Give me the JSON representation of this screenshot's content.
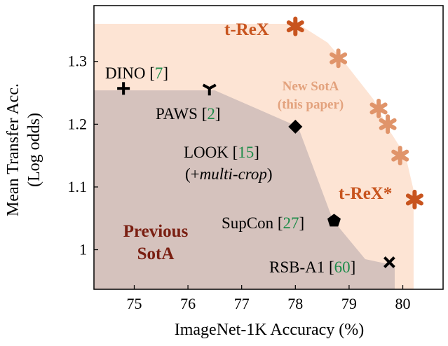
{
  "chart_data": {
    "type": "scatter",
    "title": "",
    "xlabel": "ImageNet-1K Accuracy (%)",
    "ylabel_line1": "Mean Transfer Acc.",
    "ylabel_line2": "(Log odds)",
    "xlim": [
      74.25,
      80.75
    ],
    "ylim": [
      0.937,
      1.389
    ],
    "xticks": [
      75,
      76,
      77,
      78,
      79,
      80
    ],
    "yticks": [
      1,
      1.1,
      1.2,
      1.3
    ],
    "xtick_labels": [
      "75",
      "76",
      "77",
      "78",
      "79",
      "80"
    ],
    "ytick_labels": [
      "1",
      "1.1",
      "1.2",
      "1.3"
    ],
    "colors": {
      "previous_region": "#d5c2bd",
      "new_region": "#fde4d4",
      "trex": "#c8541e",
      "trex_light": "#e0946a",
      "previous_label": "#7a1f12",
      "new_label": "#e3a27d",
      "cite": "#1e8c4a",
      "marker": "#000000"
    },
    "regions": {
      "previous": {
        "label_line1": "Previous",
        "label_line2": "SotA",
        "points": [
          [
            74.25,
            0.937
          ],
          [
            74.25,
            1.254
          ],
          [
            76.5,
            1.254
          ],
          [
            78.05,
            1.196
          ],
          [
            78.7,
            1.047
          ],
          [
            79.3,
            0.985
          ],
          [
            79.85,
            0.975
          ],
          [
            79.85,
            0.937
          ]
        ]
      },
      "new": {
        "label_line1": "New SotA",
        "label_line2": "(this paper)",
        "points": [
          [
            74.25,
            0.937
          ],
          [
            74.25,
            1.36
          ],
          [
            78.05,
            1.36
          ],
          [
            78.6,
            1.33
          ],
          [
            78.9,
            1.3
          ],
          [
            79.45,
            1.24
          ],
          [
            79.75,
            1.19
          ],
          [
            80.05,
            1.15
          ],
          [
            80.2,
            1.095
          ],
          [
            80.2,
            0.937
          ]
        ]
      }
    },
    "series": [
      {
        "name": "t-ReX",
        "points": [
          {
            "x": 78.0,
            "y": 1.356,
            "label": "t-ReX",
            "shade": "dark"
          },
          {
            "x": 78.8,
            "y": 1.305,
            "label": "",
            "shade": "light"
          },
          {
            "x": 79.55,
            "y": 1.225,
            "label": "",
            "shade": "light"
          },
          {
            "x": 79.72,
            "y": 1.2,
            "label": "",
            "shade": "light"
          },
          {
            "x": 79.95,
            "y": 1.15,
            "label": "",
            "shade": "light"
          },
          {
            "x": 80.22,
            "y": 1.08,
            "label": "t-ReX*",
            "shade": "dark"
          }
        ]
      }
    ],
    "baselines": [
      {
        "name": "DINO",
        "cite": "7",
        "x": 74.8,
        "y": 1.257,
        "marker": "plus"
      },
      {
        "name": "PAWS",
        "cite": "2",
        "x": 76.4,
        "y": 1.257,
        "marker": "tri_down"
      },
      {
        "name": "LOOK",
        "cite": "15",
        "note_prefix": "(+",
        "note_italic": "multi-crop",
        "note_suffix": ")",
        "x": 78.0,
        "y": 1.196,
        "marker": "diamond"
      },
      {
        "name": "SupCon",
        "cite": "27",
        "x": 78.72,
        "y": 1.046,
        "marker": "pentagon"
      },
      {
        "name": "RSB-A1",
        "cite": "60",
        "x": 79.75,
        "y": 0.98,
        "marker": "x"
      }
    ]
  }
}
